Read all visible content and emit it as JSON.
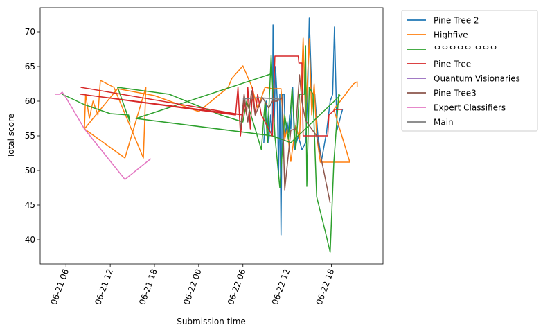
{
  "chart_data": {
    "type": "line",
    "title": "",
    "xlabel": "Submission time",
    "ylabel": "Total score",
    "x_axis": "datetime",
    "xlim": [
      "2021-06-21T02:30",
      "2021-06-23T01:00"
    ],
    "ylim": [
      36.5,
      73.5
    ],
    "x_ticks": [
      {
        "t": "2021-06-21T06:00",
        "label": "06-21 06"
      },
      {
        "t": "2021-06-21T12:00",
        "label": "06-21 12"
      },
      {
        "t": "2021-06-21T18:00",
        "label": "06-21 18"
      },
      {
        "t": "2021-06-22T00:00",
        "label": "06-22 00"
      },
      {
        "t": "2021-06-22T06:00",
        "label": "06-22 06"
      },
      {
        "t": "2021-06-22T12:00",
        "label": "06-22 12"
      },
      {
        "t": "2021-06-22T18:00",
        "label": "06-22 18"
      }
    ],
    "y_ticks": [
      40,
      45,
      50,
      55,
      60,
      65,
      70
    ],
    "grid": false,
    "legend_position": "outside-right",
    "series": [
      {
        "name": "Pine Tree 2",
        "color": "#1f77b4",
        "points": [
          [
            "2021-06-22T08:50",
            54.0
          ],
          [
            "2021-06-22T09:10",
            60.0
          ],
          [
            "2021-06-22T09:30",
            54.0
          ],
          [
            "2021-06-22T09:45",
            58.0
          ],
          [
            "2021-06-22T10:00",
            55.0
          ],
          [
            "2021-06-22T10:05",
            71.0
          ],
          [
            "2021-06-22T10:15",
            57.0
          ],
          [
            "2021-06-22T10:25",
            65.0
          ],
          [
            "2021-06-22T10:40",
            60.0
          ],
          [
            "2021-06-22T10:50",
            49.5
          ],
          [
            "2021-06-22T11:00",
            61.0
          ],
          [
            "2021-06-22T11:10",
            40.7
          ],
          [
            "2021-06-22T11:20",
            61.0
          ],
          [
            "2021-06-22T11:35",
            61.0
          ],
          [
            "2021-06-22T11:45",
            55.0
          ],
          [
            "2021-06-22T12:00",
            57.0
          ],
          [
            "2021-06-22T12:10",
            55.5
          ],
          [
            "2021-06-22T12:20",
            58.0
          ],
          [
            "2021-06-22T12:30",
            56.0
          ],
          [
            "2021-06-22T12:45",
            62.0
          ],
          [
            "2021-06-22T13:00",
            53.0
          ],
          [
            "2021-06-22T13:30",
            55.0
          ],
          [
            "2021-06-22T14:00",
            53.0
          ],
          [
            "2021-06-22T14:30",
            54.0
          ],
          [
            "2021-06-22T14:45",
            60.0
          ],
          [
            "2021-06-22T15:00",
            72.0
          ],
          [
            "2021-06-22T15:20",
            61.2
          ],
          [
            "2021-06-22T15:45",
            61.0
          ],
          [
            "2021-06-22T16:10",
            55.0
          ],
          [
            "2021-06-22T16:40",
            51.5
          ],
          [
            "2021-06-22T17:20",
            55.5
          ],
          [
            "2021-06-22T17:50",
            60.0
          ],
          [
            "2021-06-22T18:10",
            61.0
          ],
          [
            "2021-06-22T18:25",
            70.7
          ],
          [
            "2021-06-22T18:45",
            55.8
          ],
          [
            "2021-06-22T19:30",
            58.8
          ]
        ]
      },
      {
        "name": "Highfive",
        "color": "#ff7f0e",
        "points": [
          [
            "2021-06-21T08:30",
            56.0
          ],
          [
            "2021-06-21T08:40",
            61.0
          ],
          [
            "2021-06-21T09:10",
            57.5
          ],
          [
            "2021-06-21T09:40",
            60.0
          ],
          [
            "2021-06-21T10:20",
            58.0
          ],
          [
            "2021-06-21T10:40",
            63.0
          ],
          [
            "2021-06-21T12:30",
            62.0
          ],
          [
            "2021-06-21T16:30",
            51.8
          ],
          [
            "2021-06-21T16:50",
            62.0
          ],
          [
            "2021-06-21T14:00",
            51.8
          ],
          [
            "2021-06-21T08:30",
            56.0
          ],
          [
            "2021-06-21T13:00",
            61.8
          ],
          [
            "2021-06-21T18:00",
            60.8
          ],
          [
            "2021-06-22T00:00",
            58.5
          ],
          [
            "2021-06-22T04:00",
            62.0
          ],
          [
            "2021-06-22T04:30",
            63.3
          ],
          [
            "2021-06-22T06:00",
            65.1
          ],
          [
            "2021-06-22T07:10",
            62.2
          ],
          [
            "2021-06-22T08:00",
            59.0
          ],
          [
            "2021-06-22T09:00",
            62.0
          ],
          [
            "2021-06-22T10:00",
            61.8
          ],
          [
            "2021-06-22T11:10",
            61.8
          ],
          [
            "2021-06-22T11:40",
            54.5
          ],
          [
            "2021-06-22T12:00",
            56.0
          ],
          [
            "2021-06-22T12:30",
            51.3
          ],
          [
            "2021-06-22T13:10",
            56.5
          ],
          [
            "2021-06-22T13:40",
            54.5
          ],
          [
            "2021-06-22T14:10",
            69.1
          ],
          [
            "2021-06-22T14:30",
            57.2
          ],
          [
            "2021-06-22T15:00",
            69.0
          ],
          [
            "2021-06-22T15:20",
            58.0
          ],
          [
            "2021-06-22T15:40",
            62.5
          ],
          [
            "2021-06-22T16:00",
            55.0
          ],
          [
            "2021-06-22T16:30",
            51.2
          ],
          [
            "2021-06-22T17:00",
            51.2
          ],
          [
            "2021-06-22T20:30",
            51.2
          ],
          [
            "2021-06-22T18:20",
            58.8
          ],
          [
            "2021-06-22T21:00",
            62.5
          ],
          [
            "2021-06-22T21:30",
            62.8
          ],
          [
            "2021-06-22T21:30",
            62.0
          ]
        ]
      },
      {
        "name": "ᄋᄋᄋᄋᄋ ᄋᄋᄋ",
        "color": "#2ca02c",
        "points": [
          [
            "2021-06-21T05:30",
            61.0
          ],
          [
            "2021-06-21T08:30",
            59.5
          ],
          [
            "2021-06-21T12:00",
            58.2
          ],
          [
            "2021-06-21T14:30",
            58.0
          ],
          [
            "2021-06-21T14:40",
            57.0
          ],
          [
            "2021-06-21T13:00",
            62.0
          ],
          [
            "2021-06-21T20:00",
            61.0
          ],
          [
            "2021-06-22T03:00",
            58.0
          ],
          [
            "2021-06-22T06:00",
            57.0
          ],
          [
            "2021-06-22T06:30",
            60.0
          ],
          [
            "2021-06-22T07:40",
            56.0
          ],
          [
            "2021-06-22T08:30",
            53.0
          ],
          [
            "2021-06-22T09:00",
            60.0
          ],
          [
            "2021-06-22T09:20",
            54.0
          ],
          [
            "2021-06-22T09:50",
            66.6
          ],
          [
            "2021-06-22T10:20",
            55.0
          ],
          [
            "2021-06-22T11:00",
            47.5
          ],
          [
            "2021-06-22T11:40",
            58.0
          ],
          [
            "2021-06-22T12:10",
            54.5
          ],
          [
            "2021-06-22T12:40",
            61.8
          ],
          [
            "2021-06-22T13:10",
            53.0
          ],
          [
            "2021-06-22T13:40",
            61.0
          ],
          [
            "2021-06-22T14:20",
            61.0
          ],
          [
            "2021-06-22T14:30",
            68.0
          ],
          [
            "2021-06-22T14:40",
            47.7
          ],
          [
            "2021-06-22T15:00",
            62.0
          ],
          [
            "2021-06-22T15:30",
            61.0
          ],
          [
            "2021-06-22T16:00",
            46.2
          ],
          [
            "2021-06-22T17:10",
            41.2
          ],
          [
            "2021-06-22T17:50",
            38.2
          ],
          [
            "2021-06-22T18:20",
            51.2
          ],
          [
            "2021-06-22T18:40",
            56.2
          ],
          [
            "2021-06-22T19:00",
            61.0
          ],
          [
            "2021-06-22T19:10",
            60.8
          ],
          [
            "2021-06-22T12:30",
            54.0
          ],
          [
            "2021-06-22T10:00",
            55.0
          ],
          [
            "2021-06-21T15:30",
            57.5
          ],
          [
            "2021-06-22T10:00",
            64.0
          ]
        ]
      },
      {
        "name": "Pine Tree",
        "color": "#d62728",
        "points": [
          [
            "2021-06-21T08:00",
            62.0
          ],
          [
            "2021-06-22T06:00",
            58.0
          ],
          [
            "2021-06-21T08:00",
            61.0
          ],
          [
            "2021-06-22T05:00",
            58.0
          ],
          [
            "2021-06-22T05:20",
            62.0
          ],
          [
            "2021-06-22T05:40",
            55.0
          ],
          [
            "2021-06-22T06:10",
            60.0
          ],
          [
            "2021-06-22T06:30",
            58.0
          ],
          [
            "2021-06-22T06:40",
            62.0
          ],
          [
            "2021-06-22T07:00",
            56.0
          ],
          [
            "2021-06-22T07:20",
            62.0
          ],
          [
            "2021-06-22T07:40",
            58.0
          ],
          [
            "2021-06-22T08:00",
            61.0
          ],
          [
            "2021-06-22T08:30",
            58.0
          ],
          [
            "2021-06-22T09:00",
            57.0
          ],
          [
            "2021-06-22T09:30",
            56.0
          ],
          [
            "2021-06-22T10:00",
            55.0
          ],
          [
            "2021-06-22T10:20",
            66.5
          ],
          [
            "2021-06-22T13:30",
            66.5
          ],
          [
            "2021-06-22T13:35",
            65.5
          ],
          [
            "2021-06-22T14:00",
            65.5
          ],
          [
            "2021-06-22T14:10",
            55.0
          ],
          [
            "2021-06-22T17:30",
            55.0
          ],
          [
            "2021-06-22T17:40",
            58.0
          ],
          [
            "2021-06-22T18:30",
            58.8
          ],
          [
            "2021-06-22T19:30",
            58.8
          ]
        ]
      },
      {
        "name": "Quantum Visionaries",
        "color": "#9467bd",
        "points": [
          [
            "2021-06-22T10:30",
            60.0
          ],
          [
            "2021-06-22T10:40",
            60.2
          ]
        ]
      },
      {
        "name": "Pine Tree3",
        "color": "#8c564b",
        "points": [
          [
            "2021-06-22T05:40",
            56.0
          ],
          [
            "2021-06-22T06:10",
            61.0
          ],
          [
            "2021-06-22T06:40",
            57.0
          ],
          [
            "2021-06-22T07:10",
            61.5
          ],
          [
            "2021-06-22T07:40",
            58.0
          ],
          [
            "2021-06-22T08:40",
            60.5
          ],
          [
            "2021-06-22T09:30",
            59.0
          ],
          [
            "2021-06-22T10:00",
            60.0
          ],
          [
            "2021-06-22T10:40",
            60.0
          ],
          [
            "2021-06-22T11:20",
            60.5
          ],
          [
            "2021-06-22T11:40",
            47.2
          ],
          [
            "2021-06-22T12:30",
            55.8
          ],
          [
            "2021-06-22T13:10",
            56.0
          ],
          [
            "2021-06-22T13:40",
            63.8
          ],
          [
            "2021-06-22T14:00",
            60.0
          ],
          [
            "2021-06-22T14:30",
            57.2
          ],
          [
            "2021-06-22T16:00",
            55.0
          ],
          [
            "2021-06-22T17:50",
            45.3
          ]
        ]
      },
      {
        "name": "Expert Classifiers",
        "color": "#e377c2",
        "points": [
          [
            "2021-06-21T04:30",
            61.0
          ],
          [
            "2021-06-21T05:10",
            61.0
          ],
          [
            "2021-06-21T05:30",
            61.3
          ],
          [
            "2021-06-21T06:00",
            60.5
          ],
          [
            "2021-06-21T08:30",
            56.0
          ],
          [
            "2021-06-21T14:00",
            48.7
          ],
          [
            "2021-06-21T17:30",
            51.7
          ]
        ]
      },
      {
        "name": "Main",
        "color": "#7f7f7f",
        "points": [
          [
            "2021-06-22T06:00",
            60.3
          ],
          [
            "2021-06-22T08:00",
            60.5
          ],
          [
            "2021-06-22T11:00",
            60.3
          ]
        ]
      }
    ]
  }
}
